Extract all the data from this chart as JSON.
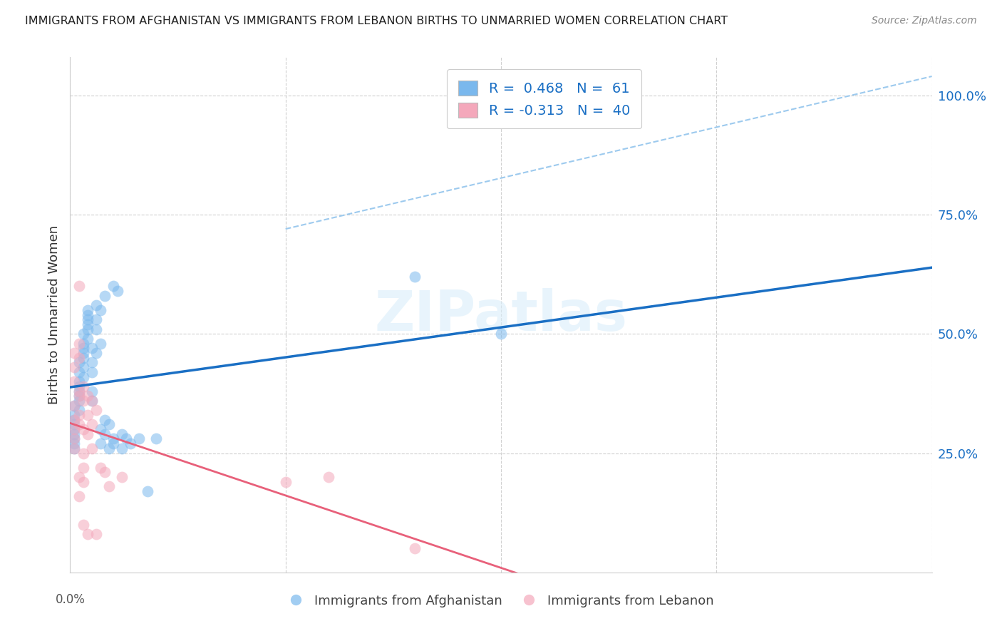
{
  "title": "IMMIGRANTS FROM AFGHANISTAN VS IMMIGRANTS FROM LEBANON BIRTHS TO UNMARRIED WOMEN CORRELATION CHART",
  "source_text": "Source: ZipAtlas.com",
  "ylabel": "Births to Unmarried Women",
  "background_color": "#ffffff",
  "watermark": "ZIPatlas",
  "afghanistan_R": 0.468,
  "afghanistan_N": 61,
  "lebanon_R": -0.313,
  "lebanon_N": 40,
  "right_ytick_labels": [
    "100.0%",
    "75.0%",
    "50.0%",
    "25.0%"
  ],
  "right_ytick_vals": [
    1.0,
    0.75,
    0.5,
    0.25
  ],
  "blue_color": "#7ab8ed",
  "pink_color": "#f4a8bb",
  "line_blue": "#1a6fc4",
  "line_pink": "#e8607a",
  "dashed_line_color": "#9dcaee",
  "x_min": 0.0,
  "x_max": 0.2,
  "y_min": 0.0,
  "y_max": 1.08,
  "afghanistan_dots": [
    [
      0.001,
      0.28
    ],
    [
      0.001,
      0.26
    ],
    [
      0.001,
      0.3
    ],
    [
      0.001,
      0.31
    ],
    [
      0.001,
      0.33
    ],
    [
      0.001,
      0.35
    ],
    [
      0.001,
      0.32
    ],
    [
      0.001,
      0.29
    ],
    [
      0.001,
      0.27
    ],
    [
      0.002,
      0.4
    ],
    [
      0.002,
      0.38
    ],
    [
      0.002,
      0.36
    ],
    [
      0.002,
      0.42
    ],
    [
      0.002,
      0.44
    ],
    [
      0.002,
      0.34
    ],
    [
      0.002,
      0.37
    ],
    [
      0.002,
      0.39
    ],
    [
      0.003,
      0.45
    ],
    [
      0.003,
      0.46
    ],
    [
      0.003,
      0.48
    ],
    [
      0.003,
      0.5
    ],
    [
      0.003,
      0.43
    ],
    [
      0.003,
      0.41
    ],
    [
      0.003,
      0.47
    ],
    [
      0.004,
      0.52
    ],
    [
      0.004,
      0.49
    ],
    [
      0.004,
      0.54
    ],
    [
      0.004,
      0.51
    ],
    [
      0.004,
      0.55
    ],
    [
      0.004,
      0.53
    ],
    [
      0.005,
      0.44
    ],
    [
      0.005,
      0.47
    ],
    [
      0.005,
      0.42
    ],
    [
      0.005,
      0.38
    ],
    [
      0.005,
      0.36
    ],
    [
      0.006,
      0.46
    ],
    [
      0.006,
      0.56
    ],
    [
      0.006,
      0.51
    ],
    [
      0.006,
      0.53
    ],
    [
      0.007,
      0.48
    ],
    [
      0.007,
      0.55
    ],
    [
      0.007,
      0.27
    ],
    [
      0.007,
      0.3
    ],
    [
      0.008,
      0.29
    ],
    [
      0.008,
      0.32
    ],
    [
      0.008,
      0.58
    ],
    [
      0.009,
      0.31
    ],
    [
      0.009,
      0.26
    ],
    [
      0.01,
      0.27
    ],
    [
      0.01,
      0.6
    ],
    [
      0.01,
      0.28
    ],
    [
      0.011,
      0.59
    ],
    [
      0.012,
      0.29
    ],
    [
      0.012,
      0.26
    ],
    [
      0.013,
      0.28
    ],
    [
      0.014,
      0.27
    ],
    [
      0.016,
      0.28
    ],
    [
      0.018,
      0.17
    ],
    [
      0.02,
      0.28
    ],
    [
      0.08,
      0.62
    ],
    [
      0.1,
      0.5
    ]
  ],
  "lebanon_dots": [
    [
      0.001,
      0.35
    ],
    [
      0.001,
      0.32
    ],
    [
      0.001,
      0.4
    ],
    [
      0.001,
      0.3
    ],
    [
      0.001,
      0.28
    ],
    [
      0.001,
      0.26
    ],
    [
      0.001,
      0.46
    ],
    [
      0.001,
      0.43
    ],
    [
      0.002,
      0.45
    ],
    [
      0.002,
      0.48
    ],
    [
      0.002,
      0.37
    ],
    [
      0.002,
      0.38
    ],
    [
      0.002,
      0.33
    ],
    [
      0.002,
      0.31
    ],
    [
      0.002,
      0.2
    ],
    [
      0.002,
      0.16
    ],
    [
      0.002,
      0.6
    ],
    [
      0.003,
      0.39
    ],
    [
      0.003,
      0.36
    ],
    [
      0.003,
      0.3
    ],
    [
      0.003,
      0.25
    ],
    [
      0.003,
      0.22
    ],
    [
      0.003,
      0.19
    ],
    [
      0.003,
      0.1
    ],
    [
      0.004,
      0.33
    ],
    [
      0.004,
      0.37
    ],
    [
      0.004,
      0.29
    ],
    [
      0.004,
      0.08
    ],
    [
      0.005,
      0.31
    ],
    [
      0.005,
      0.36
    ],
    [
      0.005,
      0.26
    ],
    [
      0.006,
      0.08
    ],
    [
      0.006,
      0.34
    ],
    [
      0.007,
      0.22
    ],
    [
      0.008,
      0.21
    ],
    [
      0.009,
      0.18
    ],
    [
      0.012,
      0.2
    ],
    [
      0.05,
      0.19
    ],
    [
      0.06,
      0.2
    ],
    [
      0.08,
      0.05
    ]
  ]
}
